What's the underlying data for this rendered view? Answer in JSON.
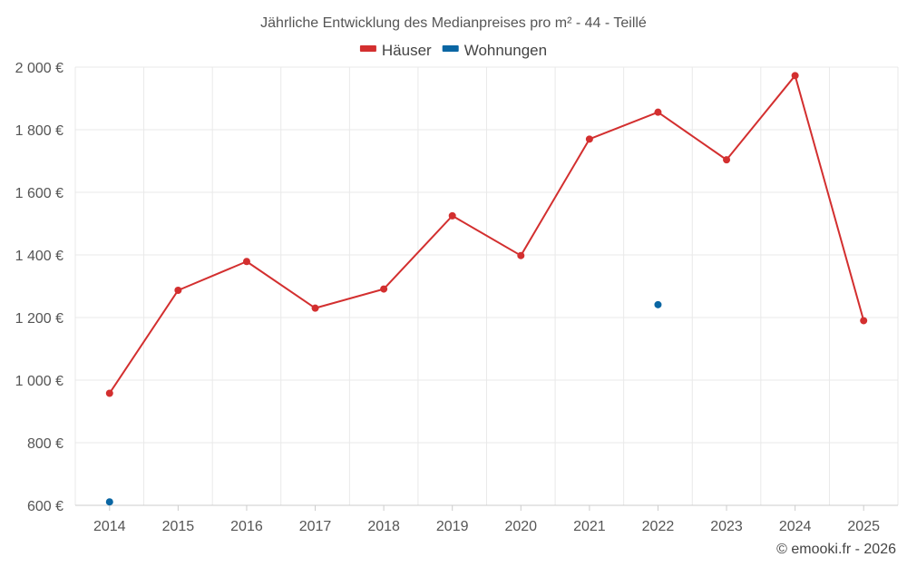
{
  "chart_data": {
    "type": "line",
    "title": "Jährliche Entwicklung des Medianpreises pro m² - 44 - Teillé",
    "categories": [
      "2014",
      "2015",
      "2016",
      "2017",
      "2018",
      "2019",
      "2020",
      "2021",
      "2022",
      "2023",
      "2024",
      "2025"
    ],
    "series": [
      {
        "name": "Häuser",
        "color": "#d32f2f",
        "values": [
          958,
          1287,
          1379,
          1230,
          1291,
          1525,
          1398,
          1770,
          1856,
          1704,
          1973,
          1190
        ]
      },
      {
        "name": "Wohnungen",
        "color": "#0a66a3",
        "values": [
          611,
          null,
          null,
          null,
          null,
          null,
          null,
          null,
          1241,
          null,
          null,
          null
        ]
      }
    ],
    "ylim": [
      600,
      2000
    ],
    "yticks": [
      600,
      800,
      1000,
      1200,
      1400,
      1600,
      1800,
      2000
    ],
    "ytick_labels": [
      "600 €",
      "800 €",
      "1 000 €",
      "1 200 €",
      "1 400 €",
      "1 600 €",
      "1 800 €",
      "2 000 €"
    ],
    "grid": true,
    "legend": "top-center",
    "xlabel": "",
    "ylabel": ""
  },
  "credit": "© emooki.fr - 2026"
}
